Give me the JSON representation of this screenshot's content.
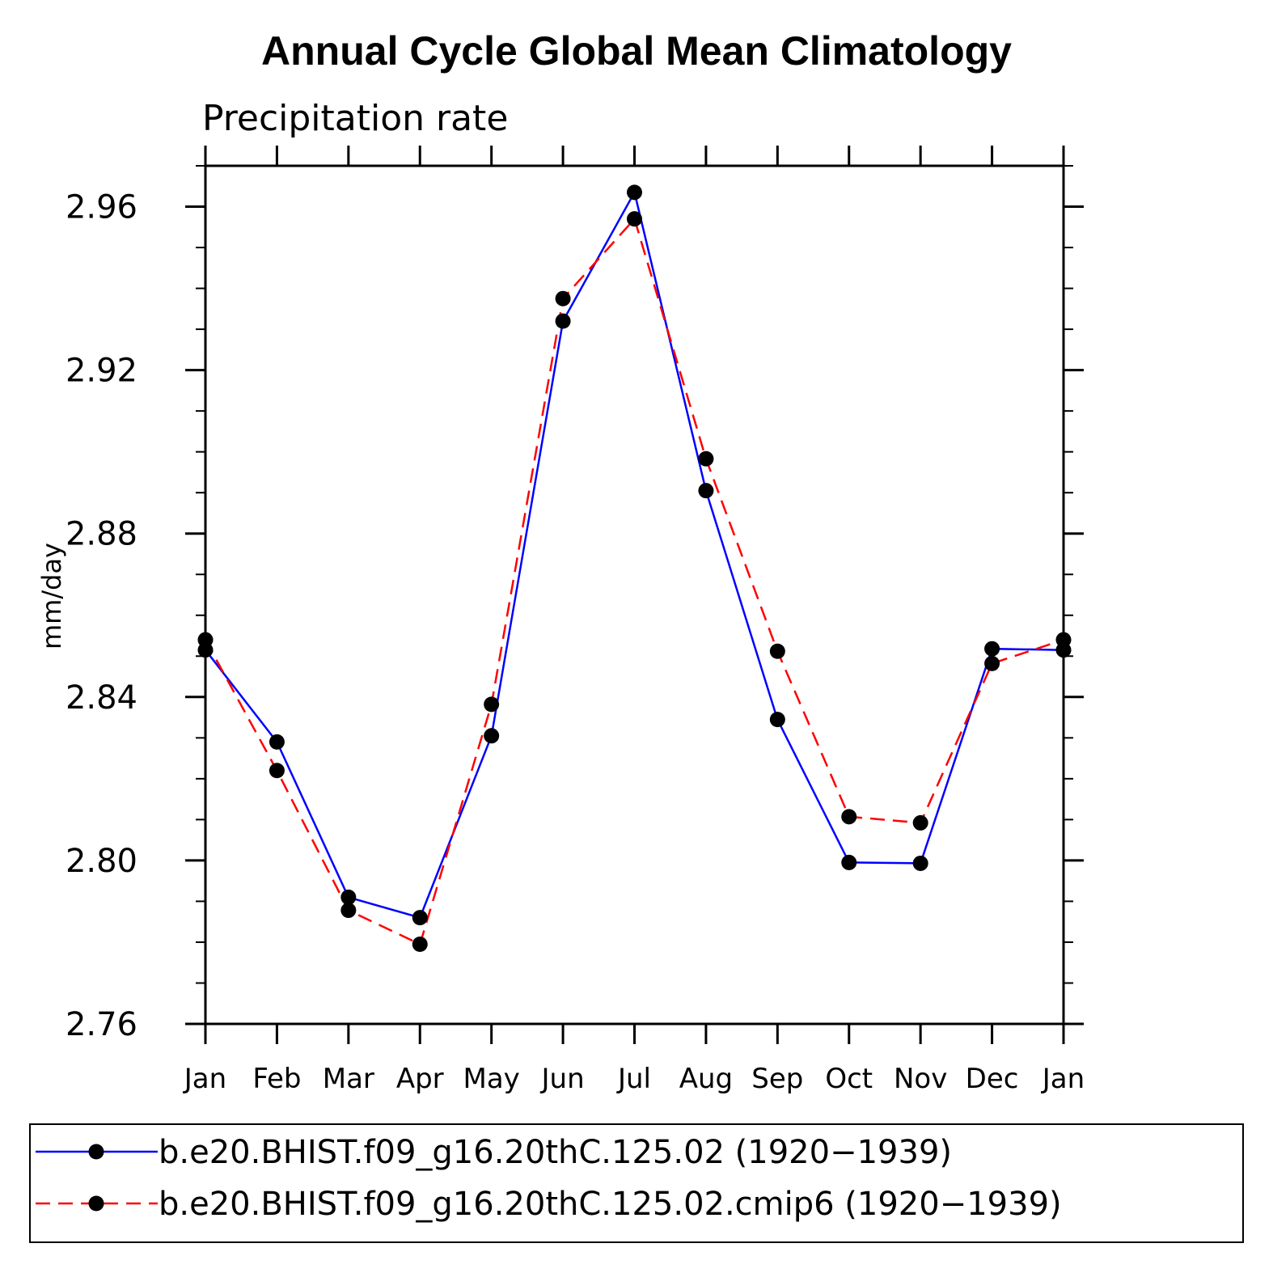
{
  "chart_data": {
    "type": "line",
    "title": "Annual Cycle Global Mean Climatology",
    "subtitle": "Precipitation rate",
    "xlabel": "",
    "ylabel": "mm/day",
    "categories": [
      "Jan",
      "Feb",
      "Mar",
      "Apr",
      "May",
      "Jun",
      "Jul",
      "Aug",
      "Sep",
      "Oct",
      "Nov",
      "Dec",
      "Jan"
    ],
    "ylim": [
      2.76,
      2.97
    ],
    "yticks": [
      "2.76",
      "2.80",
      "2.84",
      "2.88",
      "2.92",
      "2.96"
    ],
    "legend_position": "bottom",
    "series": [
      {
        "name": "b.e20.BHIST.f09_g16.20thC.125.02 (1920−1939)",
        "color": "#0000ff",
        "style": "solid",
        "marker": "filled-circle",
        "values": [
          2.8515,
          2.829,
          2.791,
          2.786,
          2.8305,
          2.932,
          2.9635,
          2.8905,
          2.8345,
          2.7995,
          2.7993,
          2.8518,
          2.8515
        ]
      },
      {
        "name": "b.e20.BHIST.f09_g16.20thC.125.02.cmip6 (1920−1939)",
        "color": "#ff0000",
        "style": "dashed",
        "marker": "filled-circle",
        "values": [
          2.854,
          2.822,
          2.7878,
          2.7795,
          2.8382,
          2.9375,
          2.957,
          2.8983,
          2.8512,
          2.8107,
          2.8092,
          2.8482,
          2.854
        ]
      }
    ]
  }
}
